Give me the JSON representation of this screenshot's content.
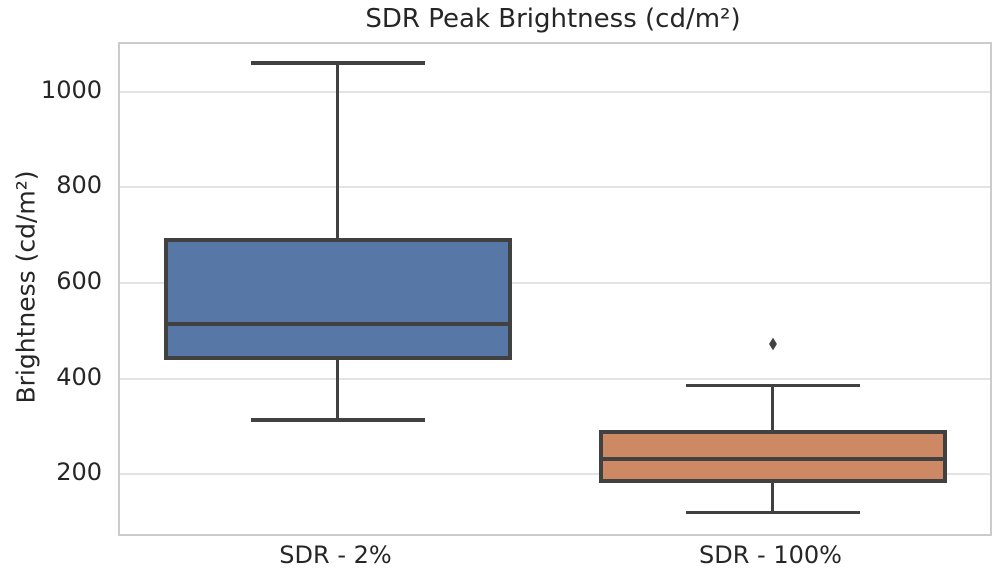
{
  "chart_data": {
    "type": "boxplot",
    "title": "SDR Peak Brightness (cd/m²)",
    "ylabel": "Brightness (cd/m²)",
    "xlabel": "",
    "categories": [
      "SDR - 2%",
      "SDR - 100%"
    ],
    "yticks": [
      200,
      400,
      600,
      800,
      1000
    ],
    "ylim": [
      75,
      1100
    ],
    "grid": true,
    "legend": "none",
    "series": [
      {
        "name": "SDR - 2%",
        "whisker_low": 313,
        "q1": 440,
        "median": 515,
        "q3": 695,
        "whisker_high": 1060,
        "outliers": [],
        "fill_color": "#5777a6"
      },
      {
        "name": "SDR - 100%",
        "whisker_low": 120,
        "q1": 182,
        "median": 231,
        "q3": 293,
        "whisker_high": 386,
        "outliers": [
          472
        ],
        "fill_color": "#cc8963"
      }
    ],
    "style": {
      "line_color": "#414141",
      "grid_color": "#e3e3e3",
      "axes_edge_color": "#cbcbcb",
      "text_color": "#262626"
    }
  }
}
